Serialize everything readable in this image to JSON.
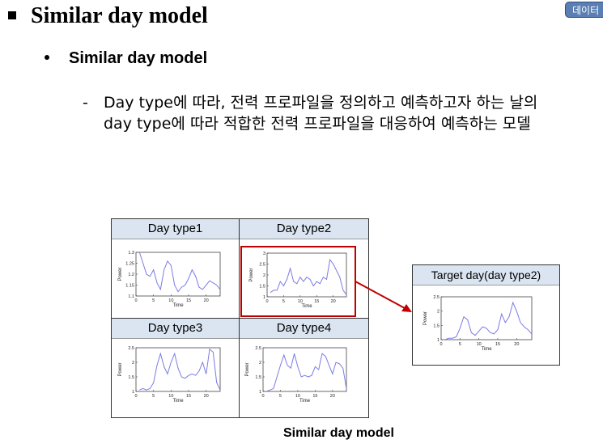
{
  "title": "Similar day model",
  "badge": "데이터",
  "subtitle": "Similar day model",
  "desc_line1": "Day type에 따라, 전력 프로파일을 정의하고 예측하고자 하는 날의",
  "desc_line2": "day type에 따라 적합한 전력 프로파일을 대응하여 예측하는 모델",
  "desc_dash": "-",
  "caption": "Similar day model",
  "colors": {
    "line": "#7b7be6",
    "highlight": "#c00000",
    "header_bg": "#dbe5f1"
  },
  "chart_data": [
    {
      "type": "line",
      "title": "Day type1",
      "xlabel": "Time",
      "ylabel": "Power",
      "ylim": [
        1.1,
        1.3
      ],
      "yticks": [
        1.1,
        1.15,
        1.2,
        1.25,
        1.3
      ],
      "xlim": [
        0,
        24
      ],
      "xticks": [
        0,
        5,
        10,
        15,
        20
      ],
      "x": [
        1,
        2,
        3,
        4,
        5,
        6,
        7,
        8,
        9,
        10,
        11,
        12,
        13,
        14,
        15,
        16,
        17,
        18,
        19,
        20,
        21,
        22,
        23,
        24
      ],
      "values": [
        1.3,
        1.25,
        1.2,
        1.19,
        1.22,
        1.16,
        1.13,
        1.22,
        1.26,
        1.24,
        1.15,
        1.12,
        1.14,
        1.15,
        1.18,
        1.22,
        1.19,
        1.14,
        1.13,
        1.15,
        1.17,
        1.16,
        1.15,
        1.13
      ]
    },
    {
      "type": "line",
      "title": "Day type2",
      "xlabel": "Time",
      "ylabel": "Power",
      "ylim": [
        1,
        3
      ],
      "yticks": [
        1,
        1.5,
        2,
        2.5,
        3
      ],
      "xlim": [
        0,
        24
      ],
      "xticks": [
        0,
        5,
        10,
        15,
        20
      ],
      "x": [
        1,
        2,
        3,
        4,
        5,
        6,
        7,
        8,
        9,
        10,
        11,
        12,
        13,
        14,
        15,
        16,
        17,
        18,
        19,
        20,
        21,
        22,
        23,
        24
      ],
      "values": [
        1.2,
        1.3,
        1.3,
        1.7,
        1.5,
        1.8,
        2.3,
        1.7,
        1.6,
        1.9,
        1.7,
        1.9,
        1.8,
        1.5,
        1.7,
        1.6,
        1.9,
        1.8,
        2.7,
        2.5,
        2.2,
        1.9,
        1.3,
        1.1
      ]
    },
    {
      "type": "line",
      "title": "Day type3",
      "xlabel": "Time",
      "ylabel": "Power",
      "ylim": [
        1,
        2.5
      ],
      "yticks": [
        1,
        1.5,
        2,
        2.5
      ],
      "xlim": [
        0,
        24
      ],
      "xticks": [
        0,
        5,
        10,
        15,
        20
      ],
      "x": [
        1,
        2,
        3,
        4,
        5,
        6,
        7,
        8,
        9,
        10,
        11,
        12,
        13,
        14,
        15,
        16,
        17,
        18,
        19,
        20,
        21,
        22,
        23,
        24
      ],
      "values": [
        1.05,
        1.1,
        1.05,
        1.1,
        1.3,
        1.9,
        2.3,
        1.85,
        1.6,
        2.0,
        2.3,
        1.8,
        1.5,
        1.45,
        1.55,
        1.6,
        1.55,
        1.7,
        2.0,
        1.6,
        2.45,
        2.35,
        1.3,
        1.05
      ]
    },
    {
      "type": "line",
      "title": "Day type4",
      "xlabel": "Time",
      "ylabel": "Power",
      "ylim": [
        1,
        2.5
      ],
      "yticks": [
        1,
        1.5,
        2,
        2.5
      ],
      "xlim": [
        0,
        24
      ],
      "xticks": [
        0,
        5,
        10,
        15,
        20
      ],
      "x": [
        1,
        2,
        3,
        4,
        5,
        6,
        7,
        8,
        9,
        10,
        11,
        12,
        13,
        14,
        15,
        16,
        17,
        18,
        19,
        20,
        21,
        22,
        23,
        24
      ],
      "values": [
        1.0,
        1.05,
        1.1,
        1.5,
        1.9,
        2.25,
        1.9,
        1.8,
        2.3,
        1.85,
        1.5,
        1.55,
        1.5,
        1.55,
        1.85,
        1.75,
        2.3,
        2.2,
        1.9,
        1.6,
        2.0,
        1.95,
        1.8,
        1.1
      ]
    },
    {
      "type": "line",
      "title": "Target day(day type2)",
      "xlabel": "Time",
      "ylabel": "Power",
      "ylim": [
        1,
        2.5
      ],
      "yticks": [
        1,
        1.5,
        2,
        2.5
      ],
      "xlim": [
        0,
        24
      ],
      "xticks": [
        0,
        5,
        10,
        15,
        20
      ],
      "x": [
        1,
        2,
        3,
        4,
        5,
        6,
        7,
        8,
        9,
        10,
        11,
        12,
        13,
        14,
        15,
        16,
        17,
        18,
        19,
        20,
        21,
        22,
        23,
        24
      ],
      "values": [
        1.0,
        1.05,
        1.05,
        1.1,
        1.4,
        1.8,
        1.7,
        1.25,
        1.15,
        1.3,
        1.45,
        1.4,
        1.25,
        1.2,
        1.35,
        1.9,
        1.6,
        1.8,
        2.3,
        2.0,
        1.6,
        1.45,
        1.35,
        1.2
      ]
    }
  ]
}
